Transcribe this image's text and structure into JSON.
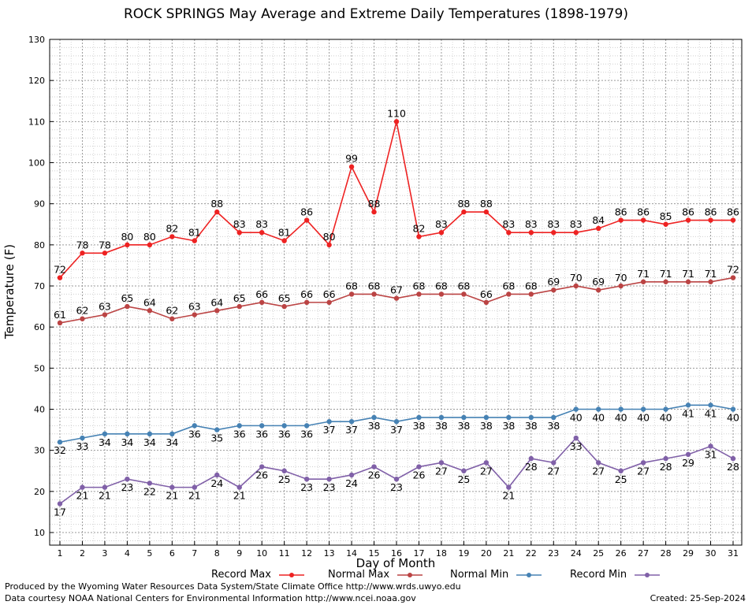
{
  "chart_data": {
    "type": "line",
    "title": "ROCK SPRINGS May Average and Extreme Daily Temperatures (1898-1979)",
    "xlabel": "Day of Month",
    "ylabel": "Temperature (F)",
    "xlim": [
      1,
      31
    ],
    "ylim": [
      10,
      130
    ],
    "y_ticks": [
      10,
      20,
      30,
      40,
      50,
      60,
      70,
      80,
      90,
      100,
      110,
      120,
      130
    ],
    "x": [
      1,
      2,
      3,
      4,
      5,
      6,
      7,
      8,
      9,
      10,
      11,
      12,
      13,
      14,
      15,
      16,
      17,
      18,
      19,
      20,
      21,
      22,
      23,
      24,
      25,
      26,
      27,
      28,
      29,
      30,
      31
    ],
    "grid": true,
    "legend_position": "bottom",
    "series": [
      {
        "name": "Record Max",
        "color": "#ee2222",
        "label_position": "above",
        "values": [
          72,
          78,
          78,
          80,
          80,
          82,
          81,
          88,
          83,
          83,
          81,
          86,
          80,
          99,
          88,
          110,
          82,
          83,
          88,
          88,
          83,
          83,
          83,
          83,
          84,
          86,
          86,
          85,
          86,
          86,
          86
        ]
      },
      {
        "name": "Normal Max",
        "color": "#bb4444",
        "label_position": "above",
        "values": [
          61,
          62,
          63,
          65,
          64,
          62,
          63,
          64,
          65,
          66,
          65,
          66,
          66,
          68,
          68,
          67,
          68,
          68,
          68,
          66,
          68,
          68,
          69,
          70,
          69,
          70,
          71,
          71,
          71,
          71,
          72
        ]
      },
      {
        "name": "Normal Min",
        "color": "#4682b4",
        "label_position": "below",
        "values": [
          32,
          33,
          34,
          34,
          34,
          34,
          36,
          35,
          36,
          36,
          36,
          36,
          37,
          37,
          38,
          37,
          38,
          38,
          38,
          38,
          38,
          38,
          38,
          40,
          40,
          40,
          40,
          40,
          41,
          41,
          40
        ]
      },
      {
        "name": "Record Min",
        "color": "#8060a8",
        "label_position": "below",
        "values": [
          17,
          21,
          21,
          23,
          22,
          21,
          21,
          24,
          21,
          26,
          25,
          23,
          23,
          24,
          26,
          23,
          26,
          27,
          25,
          27,
          21,
          28,
          27,
          33,
          27,
          25,
          27,
          28,
          29,
          31,
          28
        ]
      }
    ]
  },
  "footer": {
    "produced_by": "Produced by the Wyoming Water Resources Data System/State Climate Office http://www.wrds.uwyo.edu",
    "data_courtesy": "Data courtesy NOAA National Centers for Environmental Information http://www.ncei.noaa.gov",
    "created": "Created:  25-Sep-2024"
  }
}
